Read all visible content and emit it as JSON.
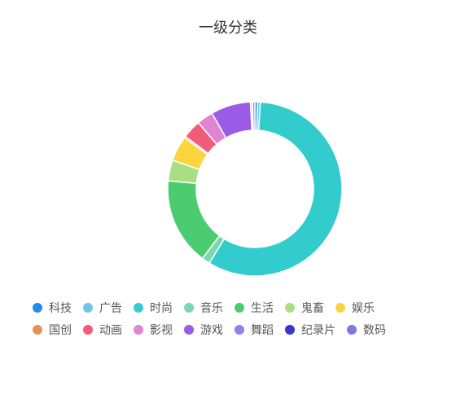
{
  "chart_data": {
    "type": "pie",
    "subtype": "donut",
    "title": "一级分类",
    "legend_position": "bottom",
    "categories": [
      "科技",
      "广告",
      "时尚",
      "音乐",
      "生活",
      "鬼畜",
      "娱乐",
      "国创",
      "动画",
      "影视",
      "游戏",
      "舞蹈",
      "纪录片",
      "数码"
    ],
    "values": [
      0.5,
      0.5,
      57,
      1.5,
      16,
      3.8,
      4.6,
      0.3,
      3.4,
      3.0,
      7.3,
      0.3,
      0.1,
      0.4
    ],
    "colors": [
      "#1e8cf0",
      "#6ec6e6",
      "#33cccc",
      "#7ad7b0",
      "#4ccc70",
      "#aade82",
      "#fcd43c",
      "#e8905a",
      "#f25c7a",
      "#e084d4",
      "#9a5ce6",
      "#8c82f0",
      "#3636c8",
      "#7c7ce0"
    ],
    "legend_rows": [
      [
        "科技",
        "广告",
        "时尚",
        "音乐",
        "生活",
        "鬼畜",
        "娱乐"
      ],
      [
        "国创",
        "动画",
        "影视",
        "游戏",
        "舞蹈",
        "纪录片",
        "数码"
      ]
    ]
  }
}
